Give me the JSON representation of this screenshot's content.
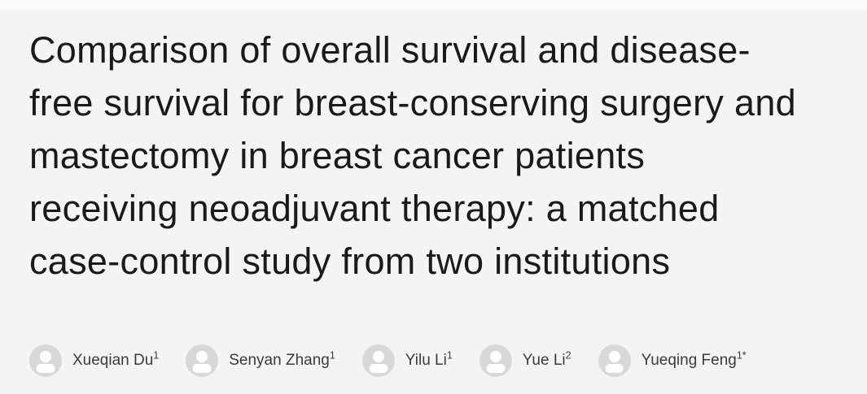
{
  "page": {
    "background_color": "#f4f4f4",
    "title_color": "#1a1a1a",
    "author_text_color": "#3b3b3b",
    "avatar_color": "#d8d8d8"
  },
  "title": {
    "full": "Comparison of overall survival and disease-free survival for breast-conserving surgery and mastectomy in breast cancer patients receiving neoadjuvant therapy: a matched case-control study from two institutions",
    "lines": [
      "Comparison of overall survival and disease-",
      "free survival for breast-conserving surgery and",
      "mastectomy in breast cancer patients",
      "receiving neoadjuvant therapy: a matched",
      "case-control study from two institutions"
    ]
  },
  "authors": [
    {
      "name": "Xueqian Du",
      "affiliation": "1"
    },
    {
      "name": "Senyan Zhang",
      "affiliation": "1"
    },
    {
      "name": "Yilu Li",
      "affiliation": "1"
    },
    {
      "name": "Yue Li",
      "affiliation": "2"
    },
    {
      "name": "Yueqing Feng",
      "affiliation": "1*"
    }
  ],
  "icons": {
    "avatar": "person-icon"
  }
}
